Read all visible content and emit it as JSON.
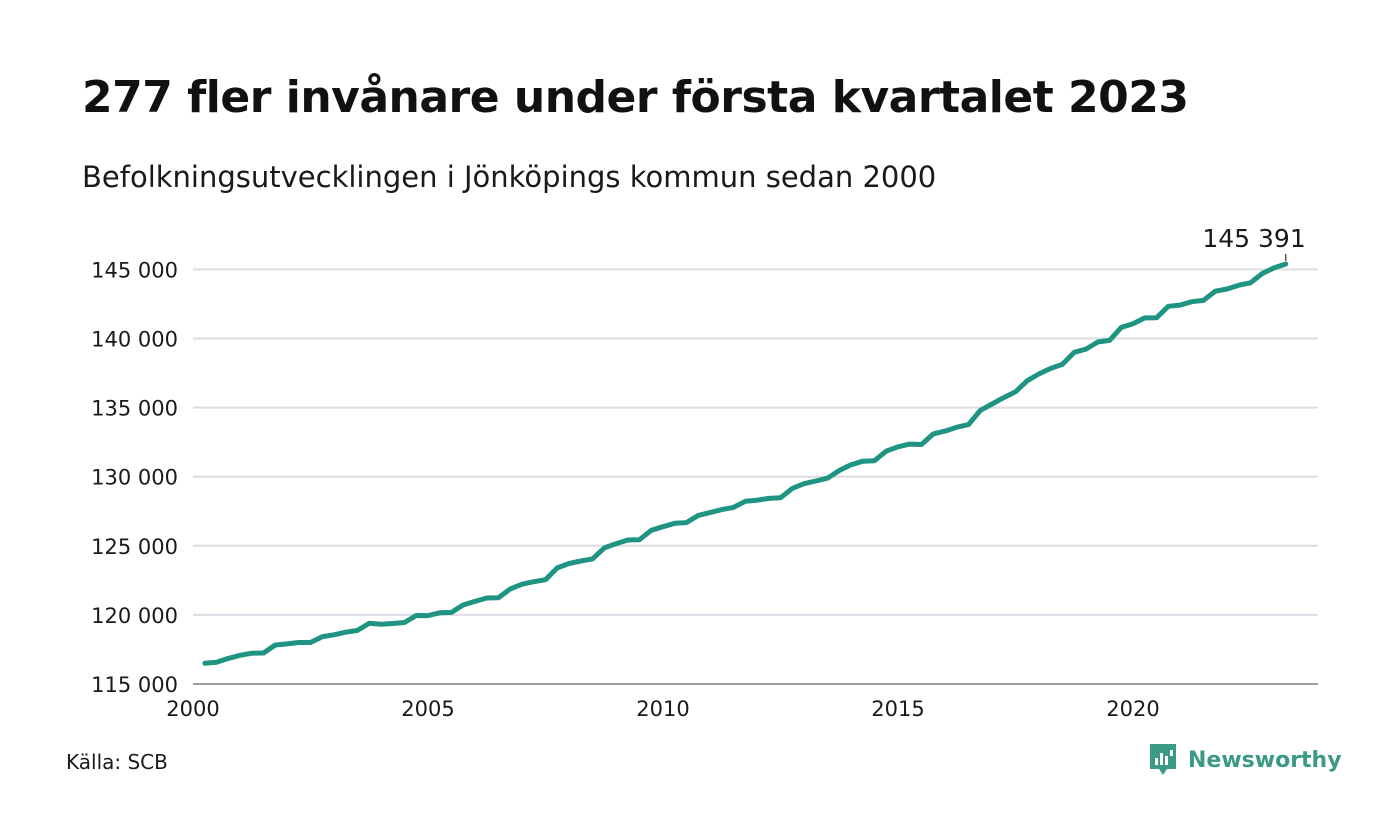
{
  "title": "277 fler invånare under första kvartalet 2023",
  "subtitle": "Befolkningsutvecklingen i Jönköpings kommun sedan 2000",
  "source": "Källa: SCB",
  "brand": {
    "name": "Newsworthy",
    "icon": "newsworthy-logo-icon",
    "color": "#3a9a86"
  },
  "colors": {
    "line": "#1f9482",
    "grid": "#dcdce4",
    "text": "#1a1a1a"
  },
  "chart_data": {
    "type": "line",
    "title": "277 fler invånare under första kvartalet 2023",
    "subtitle": "Befolkningsutvecklingen i Jönköpings kommun sedan 2000",
    "xlabel": "",
    "ylabel": "",
    "xlim": [
      2000,
      2024
    ],
    "ylim": [
      115000,
      146500
    ],
    "grid": true,
    "y_ticks": [
      115000,
      120000,
      125000,
      130000,
      135000,
      140000,
      145000
    ],
    "y_tick_labels": [
      "115 000",
      "120 000",
      "125 000",
      "130 000",
      "135 000",
      "140 000",
      "145 000"
    ],
    "x_ticks": [
      2000,
      2005,
      2010,
      2015,
      2020
    ],
    "x_tick_labels": [
      "2000",
      "2005",
      "2010",
      "2015",
      "2020"
    ],
    "end_label": "145 391",
    "series": [
      {
        "x": [
          2000.25,
          2000.5,
          2000.75,
          2001.0,
          2001.25,
          2001.5,
          2001.75,
          2002.0,
          2002.25,
          2002.5,
          2002.75,
          2003.0,
          2003.25,
          2003.5,
          2003.75,
          2004.0,
          2004.25,
          2004.5,
          2004.75,
          2005.0,
          2005.25,
          2005.5,
          2005.75,
          2006.0,
          2006.25,
          2006.5,
          2006.75,
          2007.0,
          2007.25,
          2007.5,
          2007.75,
          2008.0,
          2008.25,
          2008.5,
          2008.75,
          2009.0,
          2009.25,
          2009.5,
          2009.75,
          2010.0,
          2010.25,
          2010.5,
          2010.75,
          2011.0,
          2011.25,
          2011.5,
          2011.75,
          2012.0,
          2012.25,
          2012.5,
          2012.75,
          2013.0,
          2013.25,
          2013.5,
          2013.75,
          2014.0,
          2014.25,
          2014.5,
          2014.75,
          2015.0,
          2015.25,
          2015.5,
          2015.75,
          2016.0,
          2016.25,
          2016.5,
          2016.75,
          2017.0,
          2017.25,
          2017.5,
          2017.75,
          2018.0,
          2018.25,
          2018.5,
          2018.75,
          2019.0,
          2019.25,
          2019.5,
          2019.75,
          2020.0,
          2020.25,
          2020.5,
          2020.75,
          2021.0,
          2021.25,
          2021.5,
          2021.75,
          2022.0,
          2022.25,
          2022.5,
          2022.75,
          2023.0,
          2023.25
        ],
        "values": [
          116500,
          116580,
          116850,
          117080,
          117230,
          117240,
          117820,
          117900,
          118000,
          118000,
          118420,
          118560,
          118750,
          118880,
          119400,
          119330,
          119380,
          119450,
          119960,
          119950,
          120150,
          120180,
          120720,
          120980,
          121220,
          121240,
          121880,
          122220,
          122400,
          122550,
          123400,
          123720,
          123900,
          124050,
          124850,
          125150,
          125420,
          125440,
          126120,
          126380,
          126630,
          126680,
          127200,
          127400,
          127620,
          127780,
          128220,
          128300,
          128430,
          128470,
          129150,
          129490,
          129690,
          129890,
          130450,
          130860,
          131120,
          131160,
          131850,
          132160,
          132360,
          132330,
          133100,
          133300,
          133580,
          133770,
          134800,
          135260,
          135720,
          136140,
          136950,
          137440,
          137840,
          138130,
          139000,
          139230,
          139750,
          139860,
          140800,
          141070,
          141490,
          141500,
          142330,
          142420,
          142660,
          142760,
          143420,
          143580,
          143860,
          144030,
          144700,
          145110,
          145391
        ]
      }
    ]
  }
}
